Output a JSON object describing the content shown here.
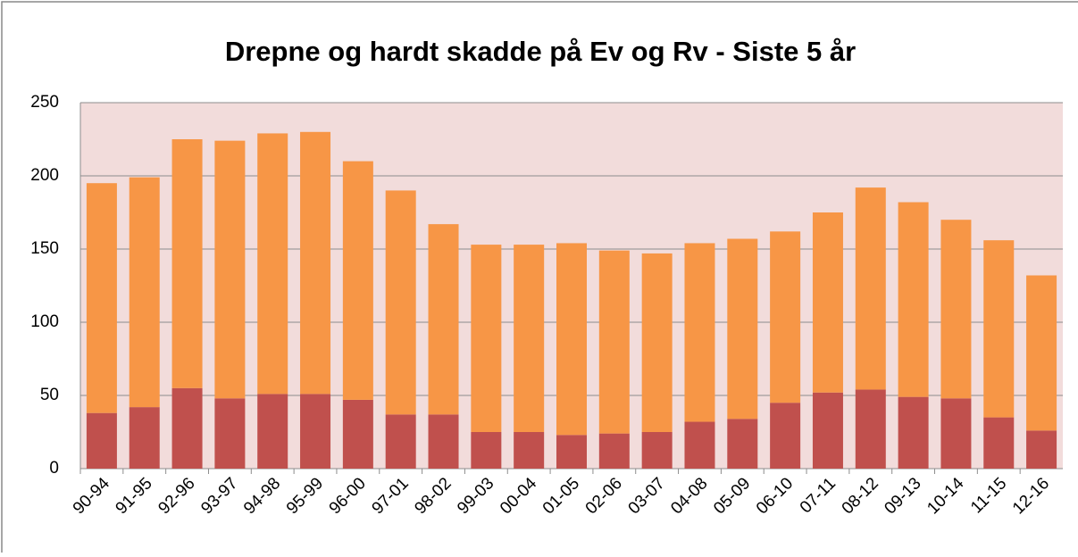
{
  "chart_data": {
    "type": "stacked_bar",
    "title": "Drepne og hardt skadde på Ev og Rv - Siste 5 år",
    "categories": [
      "90-94",
      "91-95",
      "92-96",
      "93-97",
      "94-98",
      "95-99",
      "96-00",
      "97-01",
      "98-02",
      "99-03",
      "00-04",
      "01-05",
      "02-06",
      "03-07",
      "04-08",
      "05-09",
      "06-10",
      "07-11",
      "08-12",
      "09-13",
      "10-14",
      "11-15",
      "12-16"
    ],
    "series": [
      {
        "color": "#c0504d",
        "values": [
          38,
          42,
          55,
          48,
          51,
          51,
          47,
          37,
          37,
          25,
          25,
          23,
          24,
          25,
          32,
          34,
          45,
          52,
          54,
          49,
          48,
          35,
          26
        ]
      },
      {
        "color": "#f79646",
        "values": [
          157,
          157,
          170,
          176,
          178,
          179,
          163,
          153,
          130,
          128,
          128,
          131,
          125,
          122,
          122,
          123,
          117,
          123,
          138,
          133,
          122,
          121,
          106
        ]
      }
    ],
    "ylim": [
      0,
      250
    ],
    "yticks": [
      0,
      50,
      100,
      150,
      200,
      250
    ],
    "grid": true
  }
}
